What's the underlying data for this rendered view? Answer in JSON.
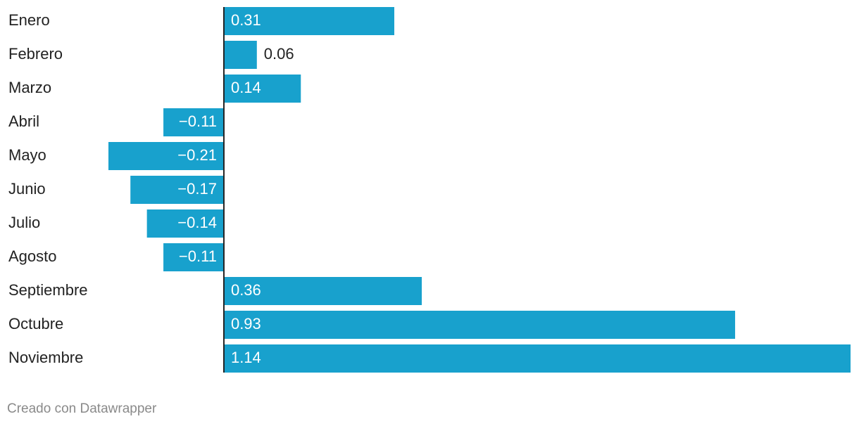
{
  "chart_data": {
    "type": "bar",
    "orientation": "horizontal",
    "categories": [
      "Enero",
      "Febrero",
      "Marzo",
      "Abril",
      "Mayo",
      "Junio",
      "Julio",
      "Agosto",
      "Septiembre",
      "Octubre",
      "Noviembre"
    ],
    "values": [
      0.31,
      0.06,
      0.14,
      -0.11,
      -0.21,
      -0.17,
      -0.14,
      -0.11,
      0.36,
      0.93,
      1.14
    ],
    "value_labels": [
      "0.31",
      "0.06",
      "0.14",
      "−0.11",
      "−0.21",
      "−0.17",
      "−0.14",
      "−0.11",
      "0.36",
      "0.93",
      "1.14"
    ],
    "color": "#18a1cd",
    "footer": "Creado con Datawrapper"
  }
}
